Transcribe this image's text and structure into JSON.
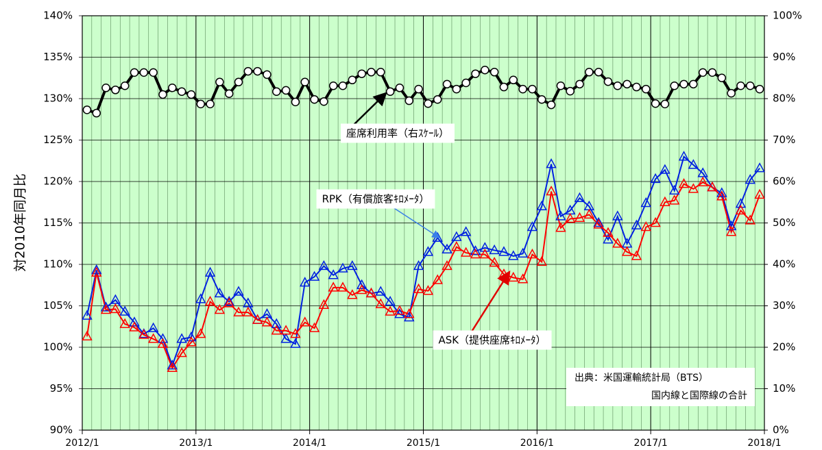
{
  "chart_data": {
    "type": "line",
    "y_label": "対2010年同月比",
    "xticks": [
      "2012/1",
      "2013/1",
      "2014/1",
      "2015/1",
      "2016/1",
      "2017/1",
      "2018/1"
    ],
    "ylim": [
      90,
      140
    ],
    "yticks": [
      {
        "value": 90,
        "label": "90%"
      },
      {
        "value": 95,
        "label": "95%"
      },
      {
        "value": 100,
        "label": "100%"
      },
      {
        "value": 105,
        "label": "105%"
      },
      {
        "value": 110,
        "label": "110%"
      },
      {
        "value": 115,
        "label": "115%"
      },
      {
        "value": 120,
        "label": "120%"
      },
      {
        "value": 125,
        "label": "125%"
      },
      {
        "value": 130,
        "label": "130%"
      },
      {
        "value": 135,
        "label": "135%"
      },
      {
        "value": 140,
        "label": "140%"
      }
    ],
    "y2lim": [
      0,
      100
    ],
    "y2ticks": [
      {
        "value": 0,
        "label": "0%"
      },
      {
        "value": 10,
        "label": "10%"
      },
      {
        "value": 20,
        "label": "20%"
      },
      {
        "value": 30,
        "label": "30%"
      },
      {
        "value": 40,
        "label": "40%"
      },
      {
        "value": 50,
        "label": "50%"
      },
      {
        "value": 60,
        "label": "60%"
      },
      {
        "value": 70,
        "label": "70%"
      },
      {
        "value": 80,
        "label": "80%"
      },
      {
        "value": 90,
        "label": "90%"
      },
      {
        "value": 100,
        "label": "100%"
      }
    ],
    "grid": true,
    "background": "#ccffcc",
    "series": [
      {
        "name": "座席利用率（右ｽｹｰﾙ）",
        "color": "#000000",
        "axis": "y2",
        "marker": "circle",
        "values": [
          77.3,
          76.5,
          82.6,
          82.1,
          83.1,
          86.3,
          86.3,
          86.3,
          81,
          82.6,
          81.7,
          81,
          78.7,
          78.7,
          84,
          81.2,
          84,
          86.6,
          86.6,
          85.8,
          81.7,
          82,
          79.2,
          84,
          79.8,
          79.3,
          83.1,
          83.1,
          84.5,
          86,
          86.4,
          86.4,
          81.7,
          82.6,
          79.5,
          82.3,
          78.8,
          79.8,
          83.5,
          82.3,
          83.8,
          86,
          86.9,
          86.4,
          82.8,
          84.5,
          82.3,
          82.3,
          79.8,
          78.5,
          83.1,
          81.8,
          83.5,
          86.4,
          86.4,
          84.1,
          83.1,
          83.5,
          82.8,
          82.3,
          78.8,
          78.7,
          83.1,
          83.5,
          83.5,
          86.3,
          86.3,
          85,
          81.3,
          83.1,
          83.1,
          82.3
        ]
      },
      {
        "name": "RPK（有償旅客ｷﾛﾒｰﾀ）",
        "color": "#0020e0",
        "marker": "triangle",
        "values": [
          103.8,
          109.3,
          104.8,
          105.7,
          104.3,
          103,
          101.6,
          102.3,
          101,
          97.8,
          101,
          101.2,
          105.8,
          109,
          106.5,
          105.5,
          106.7,
          105.3,
          103.3,
          104,
          102.8,
          101,
          100.4,
          107.8,
          108.5,
          109.8,
          108.7,
          109.5,
          109.8,
          107.5,
          106.5,
          106.7,
          105.5,
          104,
          103.6,
          109.8,
          111.5,
          113.2,
          111.8,
          113.3,
          113.9,
          111.6,
          112,
          111.7,
          111.5,
          111,
          111.3,
          114.5,
          117,
          122.1,
          115.8,
          116.5,
          118,
          117,
          115,
          113,
          115.8,
          112.5,
          114.7,
          117.4,
          120.3,
          121.4,
          118.9,
          123,
          122,
          121,
          119.3,
          118.6,
          114.6,
          117.3,
          120.2,
          121.6
        ]
      },
      {
        "name": "ASK（提供座席ｷﾛﾒｰﾀ）",
        "color": "#ff0000",
        "marker": "triangle",
        "values": [
          101.3,
          109,
          104.5,
          104.6,
          102.8,
          102.4,
          101.5,
          101,
          100.4,
          97.5,
          99.3,
          100.6,
          101.6,
          105.5,
          104.5,
          105.3,
          104.2,
          104.2,
          103.3,
          103,
          102,
          102,
          101.6,
          103,
          102.3,
          105.1,
          107.2,
          107.2,
          106.3,
          106.9,
          106.5,
          105.2,
          104.3,
          104.4,
          104,
          107,
          106.8,
          108.1,
          109.8,
          112.1,
          111.4,
          111.2,
          111.2,
          110.2,
          108.8,
          108.4,
          108.2,
          111.2,
          110.3,
          118.8,
          114.4,
          115.5,
          115.6,
          116,
          114.8,
          113.8,
          112.5,
          111.5,
          111,
          114.5,
          115,
          117.5,
          117.7,
          119.7,
          119.1,
          119.9,
          119.3,
          118.2,
          113.9,
          116.5,
          115.3,
          118.4
        ]
      }
    ],
    "source": [
      "出典：米国運輸統計局（BTS）",
      "国内線と国際線の合計"
    ]
  }
}
